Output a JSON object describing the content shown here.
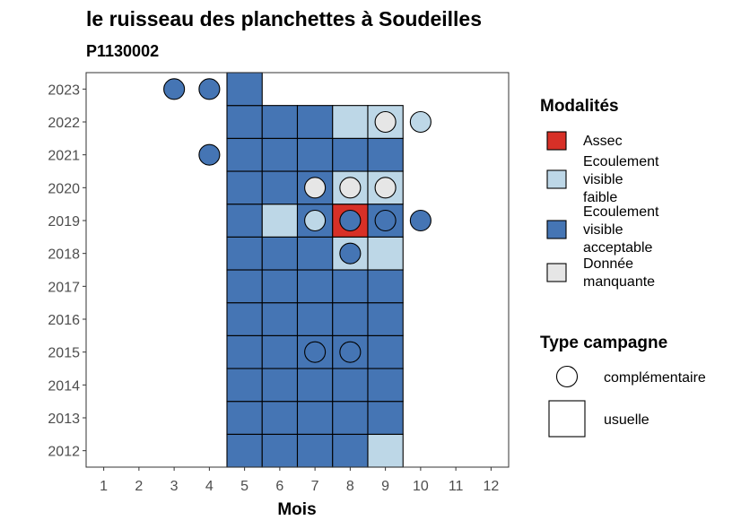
{
  "chart_data": {
    "type": "heatmap",
    "title": "le ruisseau des planchettes à Soudeilles",
    "subtitle": "P1130002",
    "xlabel": "Mois",
    "ylabel": "",
    "x_ticks": [
      "1",
      "2",
      "3",
      "4",
      "5",
      "6",
      "7",
      "8",
      "9",
      "10",
      "11",
      "12"
    ],
    "y_ticks": [
      "2012",
      "2013",
      "2014",
      "2015",
      "2016",
      "2017",
      "2018",
      "2019",
      "2020",
      "2021",
      "2022",
      "2023"
    ],
    "xlim": [
      0.5,
      12.5
    ],
    "ylim": [
      2011.5,
      2023.5
    ],
    "grid": false,
    "legend_placement": "right",
    "modalites": [
      {
        "key": "assec",
        "label": "Assec",
        "color": "#d73027"
      },
      {
        "key": "faible",
        "label": "Ecoulement visible faible",
        "color": "#bdd7e7"
      },
      {
        "key": "acceptable",
        "label": "Ecoulement visible acceptable",
        "color": "#4575b4"
      },
      {
        "key": "manquante",
        "label": "Donnée manquante",
        "color": "#e6e6e6"
      }
    ],
    "type_campagne": [
      {
        "key": "complementaire",
        "label": "complémentaire",
        "shape": "circle"
      },
      {
        "key": "usuelle",
        "label": "usuelle",
        "shape": "square"
      }
    ],
    "legend_titles": {
      "modalites": "Modalités",
      "type_campagne": "Type campagne"
    },
    "usuelle": [
      {
        "year": 2012,
        "month": 5,
        "mod": "acceptable"
      },
      {
        "year": 2012,
        "month": 6,
        "mod": "acceptable"
      },
      {
        "year": 2012,
        "month": 7,
        "mod": "acceptable"
      },
      {
        "year": 2012,
        "month": 8,
        "mod": "acceptable"
      },
      {
        "year": 2012,
        "month": 9,
        "mod": "faible"
      },
      {
        "year": 2013,
        "month": 5,
        "mod": "acceptable"
      },
      {
        "year": 2013,
        "month": 6,
        "mod": "acceptable"
      },
      {
        "year": 2013,
        "month": 7,
        "mod": "acceptable"
      },
      {
        "year": 2013,
        "month": 8,
        "mod": "acceptable"
      },
      {
        "year": 2013,
        "month": 9,
        "mod": "acceptable"
      },
      {
        "year": 2014,
        "month": 5,
        "mod": "acceptable"
      },
      {
        "year": 2014,
        "month": 6,
        "mod": "acceptable"
      },
      {
        "year": 2014,
        "month": 7,
        "mod": "acceptable"
      },
      {
        "year": 2014,
        "month": 8,
        "mod": "acceptable"
      },
      {
        "year": 2014,
        "month": 9,
        "mod": "acceptable"
      },
      {
        "year": 2015,
        "month": 5,
        "mod": "acceptable"
      },
      {
        "year": 2015,
        "month": 6,
        "mod": "acceptable"
      },
      {
        "year": 2015,
        "month": 7,
        "mod": "acceptable"
      },
      {
        "year": 2015,
        "month": 8,
        "mod": "acceptable"
      },
      {
        "year": 2015,
        "month": 9,
        "mod": "acceptable"
      },
      {
        "year": 2016,
        "month": 5,
        "mod": "acceptable"
      },
      {
        "year": 2016,
        "month": 6,
        "mod": "acceptable"
      },
      {
        "year": 2016,
        "month": 7,
        "mod": "acceptable"
      },
      {
        "year": 2016,
        "month": 8,
        "mod": "acceptable"
      },
      {
        "year": 2016,
        "month": 9,
        "mod": "acceptable"
      },
      {
        "year": 2017,
        "month": 5,
        "mod": "acceptable"
      },
      {
        "year": 2017,
        "month": 6,
        "mod": "acceptable"
      },
      {
        "year": 2017,
        "month": 7,
        "mod": "acceptable"
      },
      {
        "year": 2017,
        "month": 8,
        "mod": "acceptable"
      },
      {
        "year": 2017,
        "month": 9,
        "mod": "acceptable"
      },
      {
        "year": 2018,
        "month": 5,
        "mod": "acceptable"
      },
      {
        "year": 2018,
        "month": 6,
        "mod": "acceptable"
      },
      {
        "year": 2018,
        "month": 7,
        "mod": "acceptable"
      },
      {
        "year": 2018,
        "month": 8,
        "mod": "faible"
      },
      {
        "year": 2018,
        "month": 9,
        "mod": "faible"
      },
      {
        "year": 2019,
        "month": 5,
        "mod": "acceptable"
      },
      {
        "year": 2019,
        "month": 6,
        "mod": "faible"
      },
      {
        "year": 2019,
        "month": 7,
        "mod": "acceptable"
      },
      {
        "year": 2019,
        "month": 8,
        "mod": "assec"
      },
      {
        "year": 2019,
        "month": 9,
        "mod": "acceptable"
      },
      {
        "year": 2020,
        "month": 5,
        "mod": "acceptable"
      },
      {
        "year": 2020,
        "month": 6,
        "mod": "acceptable"
      },
      {
        "year": 2020,
        "month": 7,
        "mod": "acceptable"
      },
      {
        "year": 2020,
        "month": 8,
        "mod": "faible"
      },
      {
        "year": 2020,
        "month": 9,
        "mod": "faible"
      },
      {
        "year": 2021,
        "month": 5,
        "mod": "acceptable"
      },
      {
        "year": 2021,
        "month": 6,
        "mod": "acceptable"
      },
      {
        "year": 2021,
        "month": 7,
        "mod": "acceptable"
      },
      {
        "year": 2021,
        "month": 8,
        "mod": "acceptable"
      },
      {
        "year": 2021,
        "month": 9,
        "mod": "acceptable"
      },
      {
        "year": 2022,
        "month": 5,
        "mod": "acceptable"
      },
      {
        "year": 2022,
        "month": 6,
        "mod": "acceptable"
      },
      {
        "year": 2022,
        "month": 7,
        "mod": "acceptable"
      },
      {
        "year": 2022,
        "month": 8,
        "mod": "faible"
      },
      {
        "year": 2022,
        "month": 9,
        "mod": "faible"
      },
      {
        "year": 2023,
        "month": 5,
        "mod": "acceptable"
      }
    ],
    "complementaire": [
      {
        "year": 2023,
        "month": 3,
        "mod": "acceptable"
      },
      {
        "year": 2023,
        "month": 4,
        "mod": "acceptable"
      },
      {
        "year": 2022,
        "month": 9,
        "mod": "manquante"
      },
      {
        "year": 2022,
        "month": 10,
        "mod": "faible"
      },
      {
        "year": 2021,
        "month": 4,
        "mod": "acceptable"
      },
      {
        "year": 2020,
        "month": 7,
        "mod": "manquante"
      },
      {
        "year": 2020,
        "month": 8,
        "mod": "manquante"
      },
      {
        "year": 2020,
        "month": 9,
        "mod": "manquante"
      },
      {
        "year": 2019,
        "month": 7,
        "mod": "faible"
      },
      {
        "year": 2019,
        "month": 8,
        "mod": "acceptable"
      },
      {
        "year": 2019,
        "month": 9,
        "mod": "acceptable"
      },
      {
        "year": 2019,
        "month": 10,
        "mod": "acceptable"
      },
      {
        "year": 2018,
        "month": 8,
        "mod": "acceptable"
      },
      {
        "year": 2015,
        "month": 7,
        "mod": "acceptable"
      },
      {
        "year": 2015,
        "month": 8,
        "mod": "acceptable"
      }
    ]
  }
}
